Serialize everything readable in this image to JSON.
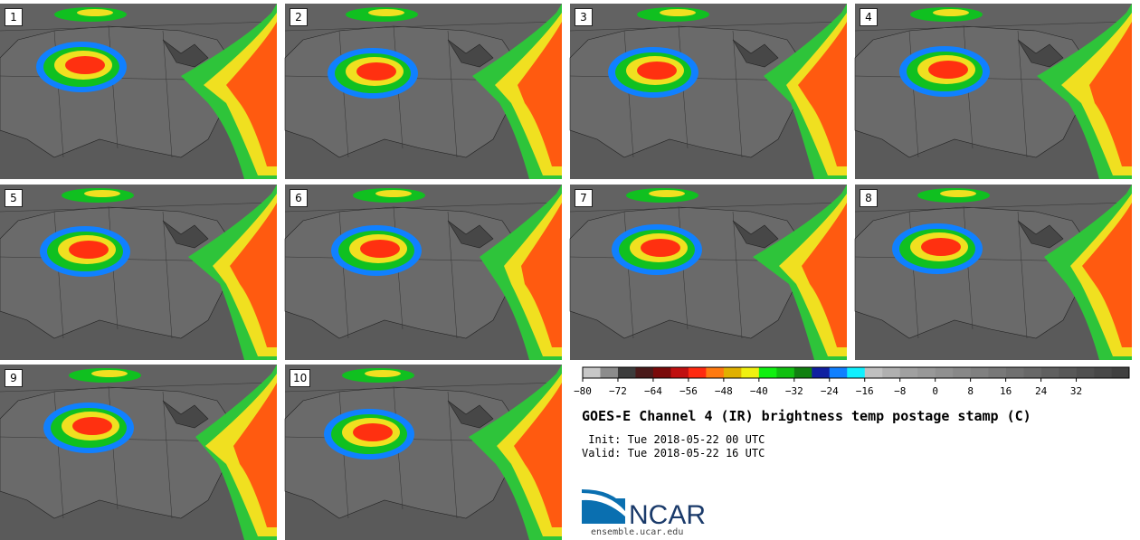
{
  "panels": [
    "1",
    "2",
    "3",
    "4",
    "5",
    "6",
    "7",
    "8",
    "9",
    "10"
  ],
  "colorbar": {
    "colors": [
      "#c8c8c8",
      "#8c8c8c",
      "#3c3c3c",
      "#4a1a1a",
      "#7a0a0a",
      "#c01010",
      "#ff2a10",
      "#ff7a10",
      "#e0b000",
      "#f0f010",
      "#10f010",
      "#10c010",
      "#108010",
      "#1020a0",
      "#1080ff",
      "#10f0ff",
      "#c0c0c0",
      "#b0b0b0",
      "#a0a0a0",
      "#989898",
      "#909090",
      "#888888",
      "#808080",
      "#787878",
      "#707070",
      "#686868",
      "#606060",
      "#585858",
      "#505050",
      "#484848",
      "#404040"
    ],
    "tick_labels": [
      "-80",
      "-72",
      "-64",
      "-56",
      "-48",
      "-40",
      "-32",
      "-24",
      "-16",
      "-8",
      "0",
      "8",
      "16",
      "24",
      "32"
    ]
  },
  "title": "GOES-E Channel 4 (IR) brightness temp postage stamp (C)",
  "init_line": " Init: Tue 2018-05-22 00 UTC",
  "valid_line": "Valid: Tue 2018-05-22 16 UTC",
  "logo_text": "NCAR",
  "url": "ensemble.ucar.edu"
}
